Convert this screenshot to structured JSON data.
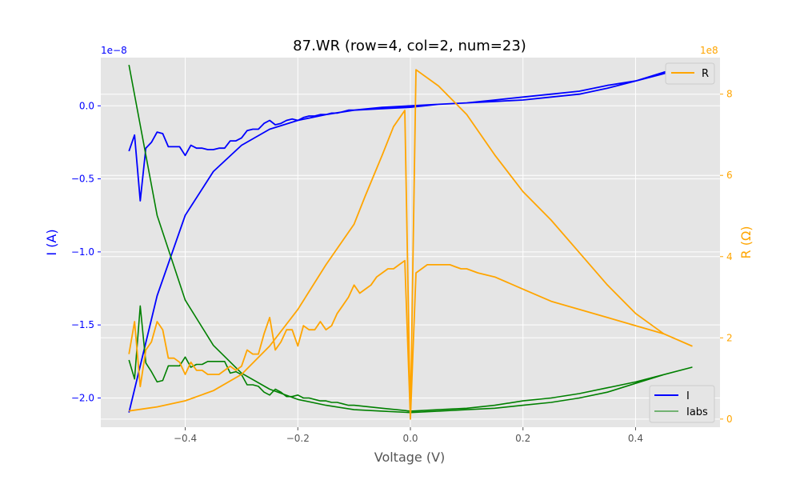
{
  "chart_data": {
    "type": "line",
    "title": "87.WR (row=4, col=2, num=23)",
    "xlabel": "Voltage (V)",
    "ylabel_left": "I (A)",
    "ylabel_right": "R (Ω)",
    "left_offset_label": "1e−8",
    "right_offset_label": "1e8",
    "xlim": [
      -0.55,
      0.55
    ],
    "ylim_left": [
      -2.2,
      0.33
    ],
    "ylim_right": [
      -0.2,
      8.9
    ],
    "x_ticks": [
      -0.4,
      -0.2,
      0.0,
      0.2,
      0.4
    ],
    "x_tick_labels": [
      "−0.4",
      "−0.2",
      "0.0",
      "0.2",
      "0.4"
    ],
    "y_left_ticks": [
      0.0,
      -0.5,
      -1.0,
      -1.5,
      -2.0
    ],
    "y_left_tick_labels": [
      "0.0",
      "−0.5",
      "−1.0",
      "−1.5",
      "−2.0"
    ],
    "y_right_ticks": [
      0,
      2,
      4,
      6,
      8
    ],
    "y_right_tick_labels": [
      "0",
      "2",
      "4",
      "6",
      "8"
    ],
    "grid": true,
    "legend_left": {
      "placement": "lower-right",
      "entries": [
        "I",
        "Iabs"
      ]
    },
    "legend_right": {
      "placement": "upper-right",
      "entries": [
        "R"
      ]
    },
    "colors": {
      "I": "#0000ff",
      "Iabs": "#008000",
      "R": "#ffa500",
      "left_axis": "#0000ff",
      "right_axis": "#ffa500",
      "background": "#e5e5e5",
      "grid": "#ffffff"
    },
    "series": [
      {
        "name": "I",
        "axis": "left",
        "x": [
          -0.5,
          -0.49,
          -0.48,
          -0.47,
          -0.46,
          -0.45,
          -0.44,
          -0.43,
          -0.42,
          -0.41,
          -0.4,
          -0.39,
          -0.38,
          -0.37,
          -0.36,
          -0.35,
          -0.34,
          -0.33,
          -0.32,
          -0.31,
          -0.3,
          -0.29,
          -0.28,
          -0.27,
          -0.26,
          -0.25,
          -0.24,
          -0.23,
          -0.22,
          -0.21,
          -0.2,
          -0.19,
          -0.18,
          -0.17,
          -0.16,
          -0.15,
          -0.14,
          -0.13,
          -0.12,
          -0.11,
          -0.1,
          -0.05,
          0.0,
          0.05,
          0.1,
          0.15,
          0.2,
          0.25,
          0.3,
          0.35,
          0.4,
          0.45,
          0.5,
          0.45,
          0.4,
          0.35,
          0.3,
          0.25,
          0.2,
          0.15,
          0.1,
          0.05,
          0.0,
          -0.05,
          -0.1,
          -0.15,
          -0.2,
          -0.25,
          -0.3,
          -0.35,
          -0.4,
          -0.45,
          -0.5
        ],
        "y": [
          -0.31,
          -0.2,
          -0.65,
          -0.29,
          -0.25,
          -0.18,
          -0.19,
          -0.28,
          -0.28,
          -0.28,
          -0.34,
          -0.27,
          -0.29,
          -0.29,
          -0.3,
          -0.3,
          -0.29,
          -0.29,
          -0.24,
          -0.24,
          -0.22,
          -0.17,
          -0.16,
          -0.16,
          -0.12,
          -0.1,
          -0.13,
          -0.12,
          -0.1,
          -0.09,
          -0.1,
          -0.08,
          -0.07,
          -0.07,
          -0.06,
          -0.06,
          -0.05,
          -0.05,
          -0.04,
          -0.03,
          -0.03,
          -0.02,
          -0.01,
          0.01,
          0.02,
          0.04,
          0.06,
          0.08,
          0.1,
          0.14,
          0.17,
          0.22,
          0.28,
          0.23,
          0.17,
          0.12,
          0.08,
          0.06,
          0.04,
          0.03,
          0.02,
          0.01,
          0.0,
          -0.01,
          -0.03,
          -0.06,
          -0.1,
          -0.16,
          -0.27,
          -0.45,
          -0.75,
          -1.3,
          -2.1
        ]
      },
      {
        "name": "Iabs",
        "axis": "left",
        "x": [
          -0.5,
          -0.49,
          -0.48,
          -0.47,
          -0.46,
          -0.45,
          -0.44,
          -0.43,
          -0.42,
          -0.41,
          -0.4,
          -0.39,
          -0.38,
          -0.37,
          -0.36,
          -0.35,
          -0.34,
          -0.33,
          -0.32,
          -0.31,
          -0.3,
          -0.29,
          -0.28,
          -0.27,
          -0.26,
          -0.25,
          -0.24,
          -0.23,
          -0.22,
          -0.21,
          -0.2,
          -0.19,
          -0.18,
          -0.17,
          -0.16,
          -0.15,
          -0.14,
          -0.13,
          -0.12,
          -0.11,
          -0.1,
          -0.05,
          0.0,
          0.05,
          0.1,
          0.15,
          0.2,
          0.25,
          0.3,
          0.35,
          0.4,
          0.45,
          0.5,
          0.45,
          0.4,
          0.35,
          0.3,
          0.25,
          0.2,
          0.15,
          0.1,
          0.05,
          0.0,
          -0.05,
          -0.1,
          -0.15,
          -0.2,
          -0.25,
          -0.3,
          -0.35,
          -0.4,
          -0.45,
          -0.5
        ],
        "y": [
          -1.74,
          -1.87,
          -1.37,
          -1.76,
          -1.82,
          -1.89,
          -1.88,
          -1.78,
          -1.78,
          -1.78,
          -1.72,
          -1.79,
          -1.77,
          -1.77,
          -1.75,
          -1.75,
          -1.75,
          -1.75,
          -1.83,
          -1.82,
          -1.84,
          -1.91,
          -1.91,
          -1.92,
          -1.96,
          -1.98,
          -1.94,
          -1.96,
          -1.99,
          -1.99,
          -1.98,
          -2.0,
          -2.0,
          -2.01,
          -2.02,
          -2.02,
          -2.03,
          -2.03,
          -2.04,
          -2.05,
          -2.05,
          -2.07,
          -2.09,
          -2.08,
          -2.07,
          -2.05,
          -2.02,
          -2.0,
          -1.97,
          -1.93,
          -1.89,
          -1.84,
          -1.79,
          -1.84,
          -1.9,
          -1.96,
          -2.0,
          -2.03,
          -2.05,
          -2.07,
          -2.08,
          -2.09,
          -2.1,
          -2.09,
          -2.08,
          -2.05,
          -2.01,
          -1.94,
          -1.83,
          -1.64,
          -1.33,
          -0.75,
          0.28
        ]
      },
      {
        "name": "R",
        "axis": "right",
        "x": [
          -0.5,
          -0.49,
          -0.48,
          -0.47,
          -0.46,
          -0.45,
          -0.44,
          -0.43,
          -0.42,
          -0.41,
          -0.4,
          -0.39,
          -0.38,
          -0.37,
          -0.36,
          -0.35,
          -0.34,
          -0.33,
          -0.32,
          -0.31,
          -0.3,
          -0.29,
          -0.28,
          -0.27,
          -0.26,
          -0.25,
          -0.24,
          -0.23,
          -0.22,
          -0.21,
          -0.2,
          -0.19,
          -0.18,
          -0.17,
          -0.16,
          -0.15,
          -0.14,
          -0.13,
          -0.12,
          -0.11,
          -0.1,
          -0.09,
          -0.08,
          -0.07,
          -0.06,
          -0.05,
          -0.04,
          -0.03,
          -0.02,
          -0.01,
          0.0,
          0.01,
          0.02,
          0.03,
          0.04,
          0.05,
          0.06,
          0.07,
          0.08,
          0.09,
          0.1,
          0.12,
          0.15,
          0.2,
          0.25,
          0.3,
          0.35,
          0.4,
          0.45,
          0.5,
          0.45,
          0.4,
          0.35,
          0.3,
          0.25,
          0.2,
          0.15,
          0.1,
          0.05,
          0.01,
          0.0,
          -0.01,
          -0.03,
          -0.05,
          -0.08,
          -0.1,
          -0.15,
          -0.2,
          -0.25,
          -0.3,
          -0.35,
          -0.4,
          -0.45,
          -0.5
        ],
        "y": [
          1.6,
          2.4,
          0.8,
          1.7,
          1.9,
          2.4,
          2.2,
          1.5,
          1.5,
          1.4,
          1.1,
          1.4,
          1.2,
          1.2,
          1.1,
          1.1,
          1.1,
          1.2,
          1.3,
          1.2,
          1.3,
          1.7,
          1.6,
          1.6,
          2.1,
          2.5,
          1.7,
          1.9,
          2.2,
          2.2,
          1.8,
          2.3,
          2.2,
          2.2,
          2.4,
          2.2,
          2.3,
          2.6,
          2.8,
          3.0,
          3.3,
          3.1,
          3.2,
          3.3,
          3.5,
          3.6,
          3.7,
          3.7,
          3.8,
          3.9,
          0.0,
          3.6,
          3.7,
          3.8,
          3.8,
          3.8,
          3.8,
          3.8,
          3.75,
          3.7,
          3.7,
          3.6,
          3.5,
          3.2,
          2.9,
          2.7,
          2.5,
          2.3,
          2.1,
          1.8,
          2.1,
          2.6,
          3.3,
          4.1,
          4.9,
          5.6,
          6.5,
          7.5,
          8.2,
          8.6,
          0.0,
          7.6,
          7.2,
          6.5,
          5.5,
          4.8,
          3.8,
          2.7,
          1.8,
          1.1,
          0.7,
          0.45,
          0.3,
          0.2
        ]
      }
    ]
  }
}
